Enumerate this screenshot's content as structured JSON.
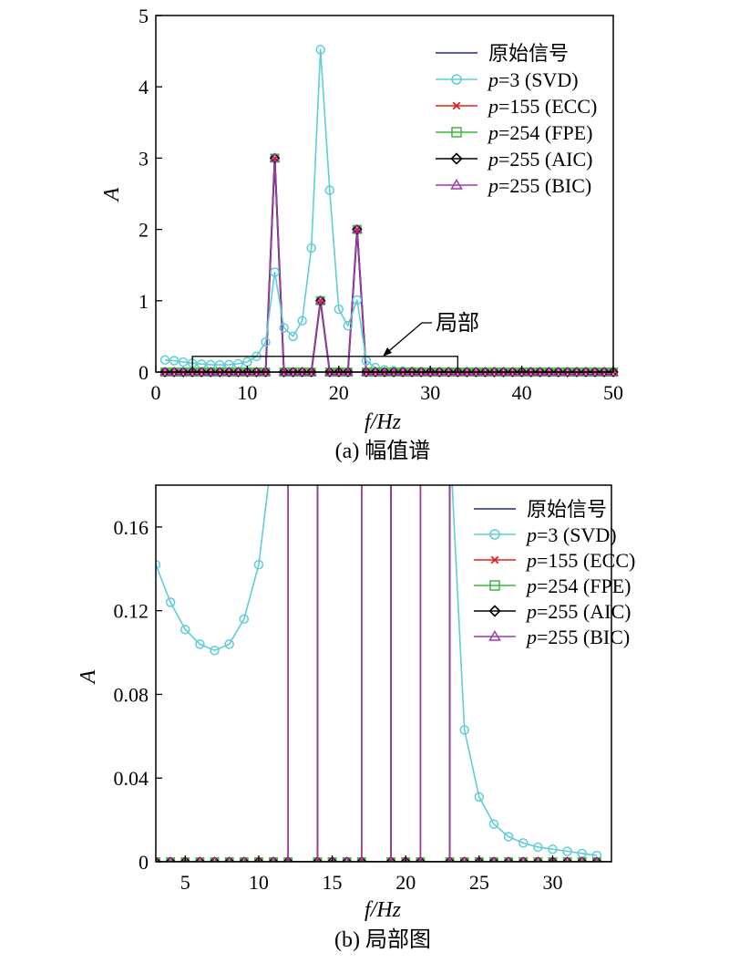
{
  "colors": {
    "original": "#1f2a8a",
    "svd": "#5fcdd6",
    "ecc": "#e8201c",
    "fpe": "#3cb83c",
    "aic": "#000000",
    "bic": "#a03aa8"
  },
  "chart_data": [
    {
      "type": "line",
      "caption": "(a) 幅值谱",
      "xlabel": "f/Hz",
      "ylabel": "A",
      "xlim": [
        0,
        50
      ],
      "ylim": [
        0,
        5
      ],
      "xticks": [
        "0",
        "10",
        "20",
        "30",
        "40",
        "50"
      ],
      "yticks": [
        "0",
        "1",
        "2",
        "3",
        "4",
        "5"
      ],
      "grid": false,
      "legend_position": "top-right",
      "legend": [
        "原始信号",
        "p=3 (SVD)",
        "p=155 (ECC)",
        "p=254 (FPE)",
        "p=255 (AIC)",
        "p=255 (BIC)"
      ],
      "annotation": "局部",
      "annotation_region": {
        "x": [
          4,
          33
        ],
        "y": [
          0,
          0.22
        ]
      },
      "series": [
        {
          "name": "p=3 (SVD)",
          "x": [
            1,
            2,
            3,
            4,
            5,
            6,
            7,
            8,
            9,
            10,
            11,
            12,
            13,
            14,
            15,
            16,
            17,
            18,
            19,
            20,
            21,
            22,
            23,
            24,
            25,
            26,
            27,
            28,
            29,
            30,
            31,
            32,
            33,
            34,
            35,
            36,
            37,
            38,
            39,
            40,
            41,
            42,
            43,
            44,
            45,
            46,
            47,
            48,
            49,
            50
          ],
          "y": [
            0.17,
            0.16,
            0.14,
            0.125,
            0.112,
            0.104,
            0.101,
            0.104,
            0.116,
            0.142,
            0.22,
            0.42,
            1.4,
            0.62,
            0.5,
            0.72,
            1.74,
            4.52,
            2.55,
            0.88,
            0.65,
            1.01,
            0.16,
            0.062,
            0.031,
            0.018,
            0.012,
            0.009,
            0.007,
            0.006,
            0.005,
            0.004,
            0.004,
            0.003,
            0.003,
            0.003,
            0.003,
            0.003,
            0.003,
            0.003,
            0.003,
            0.003,
            0.003,
            0.003,
            0.003,
            0.003,
            0.003,
            0.003,
            0.003,
            0.003
          ]
        },
        {
          "name": "p=255 (BIC)",
          "x": [
            1,
            2,
            3,
            4,
            5,
            6,
            7,
            8,
            9,
            10,
            11,
            12,
            13,
            14,
            15,
            16,
            17,
            18,
            19,
            20,
            21,
            22,
            23,
            24,
            25,
            26,
            27,
            28,
            29,
            30,
            31,
            32,
            33,
            34,
            35,
            36,
            37,
            38,
            39,
            40,
            41,
            42,
            43,
            44,
            45,
            46,
            47,
            48,
            49,
            50
          ],
          "y": [
            0,
            0,
            0,
            0,
            0,
            0,
            0,
            0,
            0,
            0,
            0,
            0,
            3,
            0,
            0,
            0,
            0,
            1,
            0,
            0,
            0,
            2,
            0,
            0,
            0,
            0,
            0,
            0,
            0,
            0,
            0,
            0,
            0,
            0,
            0,
            0,
            0,
            0,
            0,
            0,
            0,
            0,
            0,
            0,
            0,
            0,
            0,
            0,
            0,
            0
          ]
        }
      ]
    },
    {
      "type": "line",
      "caption": "(b) 局部图",
      "xlabel": "f/Hz",
      "ylabel": "A",
      "xlim": [
        3,
        34
      ],
      "ylim": [
        0,
        0.18
      ],
      "xticks": [
        "5",
        "10",
        "15",
        "20",
        "25",
        "30"
      ],
      "yticks": [
        "0",
        "0.04",
        "0.08",
        "0.12",
        "0.16"
      ],
      "grid": false,
      "legend_position": "top-right",
      "legend": [
        "原始信号",
        "p=3 (SVD)",
        "p=155 (ECC)",
        "p=254 (FPE)",
        "p=255 (AIC)",
        "p=255 (BIC)"
      ],
      "series": [
        {
          "name": "p=3 (SVD)",
          "x": [
            3,
            4,
            5,
            6,
            7,
            8,
            9,
            10,
            11,
            24,
            25,
            26,
            27,
            28,
            29,
            30,
            31,
            32,
            33
          ],
          "y": [
            0.142,
            0.124,
            0.111,
            0.104,
            0.101,
            0.104,
            0.116,
            0.142,
            0.2,
            0.063,
            0.031,
            0.018,
            0.012,
            0.009,
            0.007,
            0.006,
            0.005,
            0.004,
            0.003
          ]
        },
        {
          "name": "p=255 (BIC)",
          "x": [
            3,
            4,
            5,
            6,
            7,
            8,
            9,
            10,
            11,
            12,
            14,
            15,
            16,
            17,
            19,
            20,
            21,
            23,
            24,
            25,
            26,
            27,
            28,
            29,
            30,
            31,
            32,
            33
          ],
          "y": [
            0,
            0,
            0,
            0,
            0,
            0,
            0,
            0,
            0,
            0,
            0,
            0,
            0,
            0,
            0,
            0,
            0,
            0,
            0,
            0,
            0,
            0,
            0,
            0,
            0,
            0,
            0,
            0
          ]
        }
      ]
    }
  ]
}
